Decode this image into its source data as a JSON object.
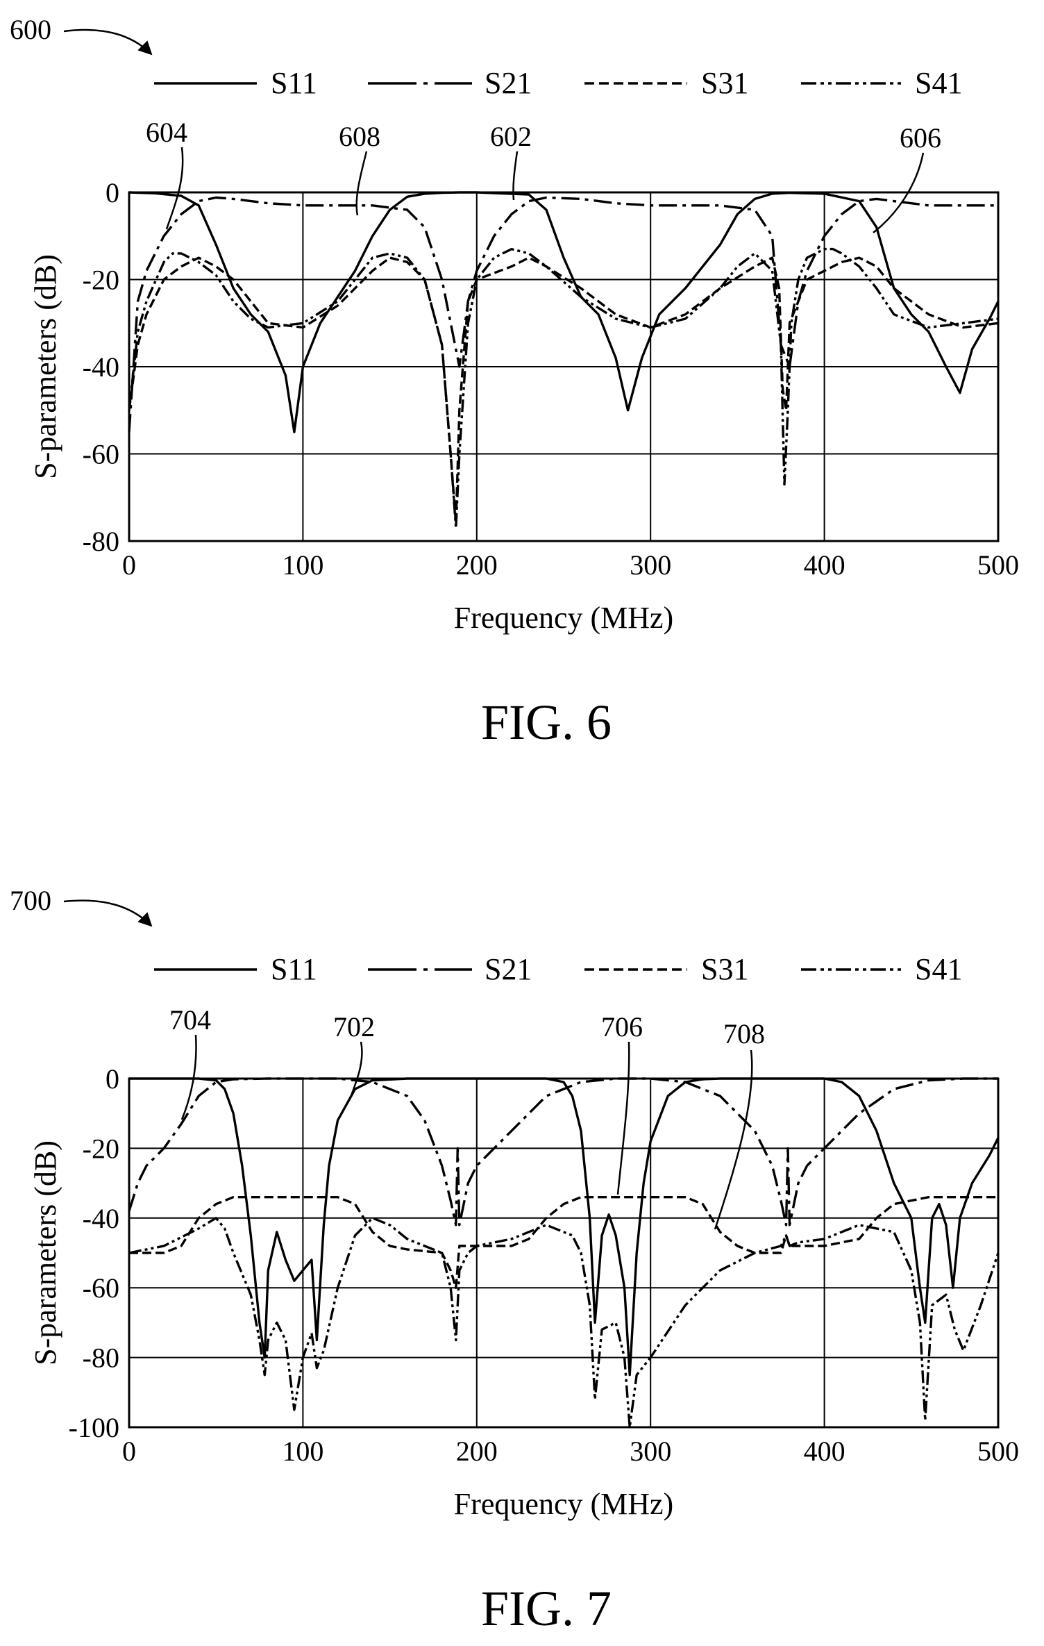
{
  "figures": [
    {
      "ref_label": "600",
      "fig_label": "FIG. 6",
      "callouts": [
        "604",
        "608",
        "602",
        "606"
      ]
    },
    {
      "ref_label": "700",
      "fig_label": "FIG. 7",
      "callouts": [
        "704",
        "702",
        "706",
        "708"
      ]
    }
  ],
  "legend": [
    {
      "name": "S11",
      "dash": "solid"
    },
    {
      "name": "S21",
      "dash": "dash-dot"
    },
    {
      "name": "S31",
      "dash": "dashed"
    },
    {
      "name": "S41",
      "dash": "dash-dot-dot"
    }
  ],
  "chart_data": [
    {
      "type": "line",
      "xlabel": "Frequency (MHz)",
      "ylabel": "S-parameters (dB)",
      "xlim": [
        0,
        500
      ],
      "ylim": [
        -80,
        0
      ],
      "xticks": [
        "0",
        "100",
        "200",
        "300",
        "400",
        "500"
      ],
      "yticks": [
        "0",
        "-20",
        "-40",
        "-60",
        "-80"
      ],
      "grid": true,
      "legend_position": "top",
      "series": [
        {
          "name": "S11",
          "x": [
            0,
            15,
            30,
            40,
            50,
            60,
            70,
            80,
            90,
            95,
            100,
            110,
            120,
            130,
            140,
            150,
            160,
            170,
            180,
            190,
            200,
            230,
            240,
            250,
            260,
            270,
            280,
            287,
            295,
            305,
            320,
            340,
            350,
            360,
            370,
            380,
            400,
            420,
            430,
            440,
            450,
            460,
            470,
            478,
            485,
            495,
            500
          ],
          "y": [
            0,
            -0.2,
            -0.8,
            -3,
            -12,
            -22,
            -28,
            -32,
            -42,
            -55,
            -40,
            -30,
            -24,
            -18,
            -10,
            -4,
            -1,
            -0.3,
            -0.1,
            0,
            0,
            -0.5,
            -4,
            -15,
            -24,
            -28,
            -38,
            -50,
            -38,
            -28,
            -22,
            -12,
            -5,
            -1.5,
            -0.3,
            -0.1,
            -0.3,
            -2,
            -8,
            -22,
            -28,
            -32,
            -40,
            -46,
            -36,
            -29,
            -25
          ]
        },
        {
          "name": "S21",
          "x": [
            0,
            5,
            10,
            20,
            30,
            40,
            50,
            60,
            80,
            100,
            120,
            140,
            160,
            170,
            180,
            190,
            195,
            200,
            210,
            220,
            230,
            240,
            260,
            280,
            300,
            320,
            340,
            360,
            370,
            375,
            380,
            385,
            390,
            400,
            410,
            420,
            430,
            440,
            460,
            480,
            500
          ],
          "y": [
            -55,
            -25,
            -18,
            -10,
            -5,
            -2,
            -1.2,
            -1.5,
            -2.5,
            -3,
            -3,
            -3,
            -4,
            -8,
            -20,
            -40,
            -25,
            -18,
            -10,
            -5,
            -2,
            -1.2,
            -1.5,
            -2.5,
            -3,
            -3,
            -3,
            -4,
            -10,
            -35,
            -40,
            -25,
            -18,
            -10,
            -5,
            -2,
            -1.5,
            -2,
            -3,
            -3,
            -3
          ]
        },
        {
          "name": "S31",
          "x": [
            0,
            5,
            10,
            20,
            30,
            40,
            50,
            60,
            70,
            80,
            100,
            120,
            130,
            140,
            150,
            160,
            170,
            180,
            185,
            188,
            190,
            195,
            200,
            220,
            230,
            240,
            260,
            280,
            300,
            320,
            340,
            360,
            370,
            374,
            376,
            378,
            380,
            390,
            410,
            420,
            430,
            440,
            460,
            480,
            500
          ],
          "y": [
            -50,
            -35,
            -28,
            -20,
            -17,
            -15,
            -17,
            -20,
            -25,
            -30,
            -31,
            -26,
            -22,
            -18,
            -15,
            -16,
            -20,
            -35,
            -60,
            -76,
            -50,
            -25,
            -20,
            -17,
            -15,
            -17,
            -22,
            -28,
            -31,
            -28,
            -22,
            -17,
            -15,
            -22,
            -45,
            -50,
            -30,
            -20,
            -16,
            -15,
            -17,
            -22,
            -28,
            -31,
            -30
          ]
        },
        {
          "name": "S41",
          "x": [
            0,
            5,
            10,
            20,
            25,
            30,
            40,
            50,
            60,
            70,
            80,
            100,
            120,
            130,
            140,
            150,
            160,
            170,
            180,
            185,
            188,
            190,
            195,
            200,
            210,
            220,
            230,
            240,
            260,
            280,
            300,
            320,
            340,
            350,
            360,
            370,
            375,
            377,
            379,
            381,
            385,
            390,
            400,
            405,
            410,
            420,
            430,
            440,
            460,
            480,
            500
          ],
          "y": [
            -50,
            -32,
            -25,
            -16,
            -14,
            -14,
            -16,
            -19,
            -25,
            -29,
            -31,
            -30,
            -25,
            -20,
            -15,
            -14,
            -15,
            -20,
            -35,
            -60,
            -77,
            -60,
            -30,
            -20,
            -15,
            -13,
            -14,
            -17,
            -24,
            -29,
            -31,
            -29,
            -22,
            -17,
            -14,
            -18,
            -35,
            -67,
            -50,
            -30,
            -20,
            -15,
            -13,
            -13,
            -14,
            -17,
            -22,
            -28,
            -31,
            -30,
            -29
          ]
        }
      ]
    },
    {
      "type": "line",
      "xlabel": "Frequency (MHz)",
      "ylabel": "S-parameters (dB)",
      "xlim": [
        0,
        500
      ],
      "ylim": [
        -100,
        0
      ],
      "xticks": [
        "0",
        "100",
        "200",
        "300",
        "400",
        "500"
      ],
      "yticks": [
        "0",
        "-20",
        "-40",
        "-60",
        "-80",
        "-100"
      ],
      "grid": true,
      "legend_position": "top",
      "series": [
        {
          "name": "S11",
          "x": [
            0,
            40,
            50,
            55,
            60,
            65,
            70,
            75,
            78,
            80,
            85,
            90,
            95,
            100,
            105,
            108,
            112,
            115,
            120,
            130,
            140,
            160,
            180,
            240,
            250,
            255,
            260,
            265,
            268,
            272,
            276,
            280,
            285,
            288,
            292,
            296,
            300,
            310,
            320,
            330,
            340,
            400,
            410,
            420,
            430,
            440,
            450,
            455,
            458,
            462,
            466,
            470,
            474,
            478,
            485,
            495,
            500
          ],
          "y": [
            0,
            0,
            -0.5,
            -3,
            -10,
            -25,
            -45,
            -70,
            -80,
            -55,
            -44,
            -52,
            -58,
            -55,
            -52,
            -75,
            -42,
            -25,
            -12,
            -3,
            -0.5,
            0,
            0,
            0,
            -1,
            -5,
            -15,
            -40,
            -70,
            -45,
            -39,
            -45,
            -60,
            -85,
            -50,
            -30,
            -18,
            -5,
            -1,
            -0.2,
            0,
            0,
            -1,
            -5,
            -15,
            -30,
            -40,
            -60,
            -70,
            -40,
            -36,
            -42,
            -60,
            -40,
            -30,
            -22,
            -17
          ]
        },
        {
          "name": "S21",
          "x": [
            0,
            5,
            10,
            20,
            30,
            40,
            50,
            60,
            80,
            100,
            120,
            140,
            160,
            170,
            180,
            185,
            188,
            189,
            190,
            195,
            200,
            220,
            240,
            260,
            280,
            300,
            320,
            340,
            360,
            370,
            375,
            378,
            379,
            380,
            385,
            390,
            400,
            420,
            440,
            460,
            480,
            500
          ],
          "y": [
            -38,
            -30,
            -25,
            -20,
            -13,
            -5,
            -1,
            -0.2,
            0,
            0,
            0,
            -1,
            -5,
            -12,
            -25,
            -35,
            -42,
            -20,
            -42,
            -30,
            -25,
            -15,
            -5,
            -1,
            0,
            0,
            -1,
            -5,
            -15,
            -25,
            -35,
            -42,
            -20,
            -42,
            -30,
            -25,
            -20,
            -10,
            -3,
            -0.5,
            0,
            0
          ]
        },
        {
          "name": "S31",
          "x": [
            0,
            20,
            30,
            40,
            50,
            60,
            80,
            100,
            120,
            130,
            140,
            150,
            160,
            180,
            185,
            188,
            190,
            195,
            200,
            220,
            230,
            240,
            250,
            260,
            280,
            300,
            320,
            330,
            340,
            350,
            360,
            375,
            378,
            380,
            385,
            390,
            400,
            420,
            430,
            440,
            460,
            480,
            500
          ],
          "y": [
            -50,
            -50,
            -48,
            -40,
            -36,
            -34,
            -34,
            -34,
            -34,
            -36,
            -44,
            -48,
            -49,
            -50,
            -55,
            -60,
            -48,
            -48,
            -48,
            -48,
            -46,
            -40,
            -36,
            -34,
            -34,
            -34,
            -34,
            -36,
            -44,
            -48,
            -50,
            -50,
            -45,
            -48,
            -48,
            -48,
            -48,
            -46,
            -40,
            -36,
            -34,
            -34,
            -34
          ]
        },
        {
          "name": "S41",
          "x": [
            0,
            20,
            40,
            50,
            55,
            60,
            70,
            75,
            78,
            80,
            85,
            90,
            95,
            100,
            105,
            108,
            112,
            120,
            130,
            140,
            150,
            160,
            180,
            185,
            188,
            190,
            195,
            200,
            220,
            240,
            255,
            260,
            265,
            268,
            272,
            280,
            285,
            288,
            292,
            300,
            320,
            340,
            360,
            375,
            378,
            380,
            385,
            400,
            420,
            440,
            450,
            455,
            458,
            462,
            470,
            475,
            480,
            490,
            500
          ],
          "y": [
            -50,
            -48,
            -43,
            -40,
            -43,
            -50,
            -62,
            -75,
            -85,
            -75,
            -70,
            -75,
            -95,
            -80,
            -73,
            -83,
            -78,
            -60,
            -45,
            -40,
            -42,
            -46,
            -50,
            -60,
            -75,
            -55,
            -50,
            -48,
            -46,
            -42,
            -45,
            -50,
            -65,
            -92,
            -72,
            -70,
            -80,
            -100,
            -85,
            -80,
            -65,
            -55,
            -50,
            -48,
            -45,
            -48,
            -47,
            -46,
            -42,
            -44,
            -55,
            -70,
            -98,
            -65,
            -62,
            -72,
            -78,
            -65,
            -50
          ]
        }
      ]
    }
  ]
}
